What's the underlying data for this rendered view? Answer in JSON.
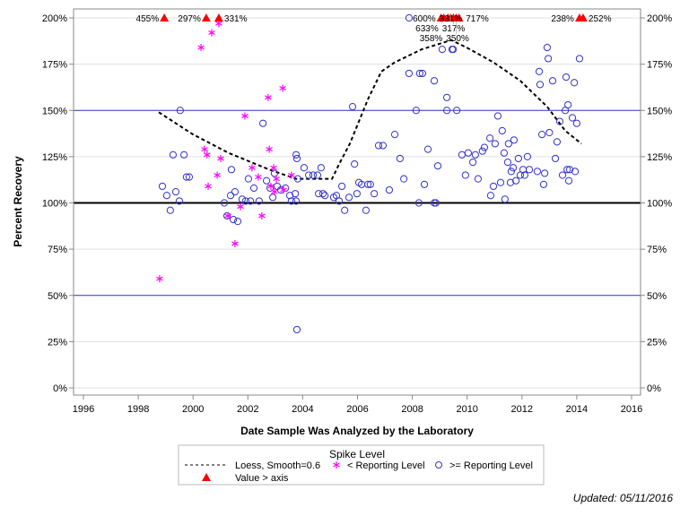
{
  "chart_data": {
    "type": "scatter",
    "xlabel": "Date Sample Was Analyzed by the Laboratory",
    "ylabel": "Percent Recovery",
    "xlim": [
      1995.7,
      2016.3
    ],
    "ylim": [
      -3,
      204
    ],
    "xticks": [
      1996,
      1998,
      2000,
      2002,
      2004,
      2006,
      2008,
      2010,
      2012,
      2014,
      2016
    ],
    "yticks": [
      0,
      25,
      50,
      75,
      100,
      125,
      150,
      175,
      200
    ],
    "ytick_labels": [
      "0%",
      "25%",
      "50%",
      "75%",
      "100%",
      "125%",
      "150%",
      "175%",
      "200%"
    ],
    "reference_lines": [
      {
        "y": 50,
        "color": "#3333cc"
      },
      {
        "y": 100,
        "color": "#000000"
      },
      {
        "y": 150,
        "color": "#3333cc"
      }
    ],
    "grid": "horizontal",
    "legend": {
      "title": "Spike Level",
      "placement": "bottom",
      "entries": [
        "Loess, Smooth=0.6",
        "< Reporting Level",
        ">= Reporting Level",
        "Value > axis"
      ]
    },
    "colors": {
      "below": "#ff00ff",
      "above": "#3333cc",
      "over_axis": "#ff0000",
      "loess": "#000000"
    },
    "loess": [
      [
        1998.75,
        149
      ],
      [
        2000,
        137
      ],
      [
        2001.3,
        127
      ],
      [
        2002.78,
        118
      ],
      [
        2003.76,
        113
      ],
      [
        2005.07,
        113
      ],
      [
        2005.33,
        121
      ],
      [
        2005.72,
        132
      ],
      [
        2006.38,
        156
      ],
      [
        2006.87,
        171
      ],
      [
        2007.36,
        176
      ],
      [
        2008.34,
        183
      ],
      [
        2009.42,
        188
      ],
      [
        2009.98,
        184
      ],
      [
        2010.96,
        176
      ],
      [
        2011.94,
        166
      ],
      [
        2012.92,
        152
      ],
      [
        2013.58,
        139
      ],
      [
        2014.17,
        132
      ]
    ],
    "below_reporting": [
      [
        1998.78,
        59
      ],
      [
        2000.29,
        184
      ],
      [
        2000.42,
        129
      ],
      [
        2000.51,
        126
      ],
      [
        2000.55,
        109
      ],
      [
        2000.68,
        192
      ],
      [
        2000.88,
        115
      ],
      [
        2000.94,
        197
      ],
      [
        2001.01,
        124
      ],
      [
        2001.27,
        93
      ],
      [
        2001.53,
        78
      ],
      [
        2001.73,
        98
      ],
      [
        2001.89,
        147
      ],
      [
        2002.15,
        119
      ],
      [
        2002.38,
        114
      ],
      [
        2002.51,
        93
      ],
      [
        2002.74,
        157
      ],
      [
        2002.78,
        129
      ],
      [
        2002.84,
        109
      ],
      [
        2002.94,
        119
      ],
      [
        2002.97,
        106
      ],
      [
        2003.04,
        113
      ],
      [
        2003.27,
        162
      ],
      [
        2003.3,
        107
      ],
      [
        2003.59,
        115
      ]
    ],
    "at_or_above_reporting": [
      [
        1998.88,
        109
      ],
      [
        1999.04,
        104
      ],
      [
        1999.17,
        96
      ],
      [
        1999.27,
        126
      ],
      [
        1999.37,
        106
      ],
      [
        1999.5,
        101
      ],
      [
        1999.53,
        150
      ],
      [
        1999.67,
        126
      ],
      [
        1999.76,
        114
      ],
      [
        1999.86,
        114
      ],
      [
        2001.14,
        100
      ],
      [
        2001.24,
        93
      ],
      [
        2001.37,
        104
      ],
      [
        2001.4,
        118
      ],
      [
        2001.47,
        91
      ],
      [
        2001.53,
        106
      ],
      [
        2001.63,
        90
      ],
      [
        2001.79,
        102
      ],
      [
        2001.92,
        101
      ],
      [
        2002.02,
        113
      ],
      [
        2002.09,
        101
      ],
      [
        2002.22,
        108
      ],
      [
        2002.41,
        101
      ],
      [
        2002.55,
        143
      ],
      [
        2002.68,
        112
      ],
      [
        2002.81,
        108
      ],
      [
        2002.91,
        103
      ],
      [
        2002.97,
        116
      ],
      [
        2003.07,
        109
      ],
      [
        2003.2,
        107
      ],
      [
        2003.37,
        108
      ],
      [
        2003.53,
        104
      ],
      [
        2003.59,
        101
      ],
      [
        2003.76,
        126
      ],
      [
        2003.79,
        124
      ],
      [
        2003.79,
        31.5
      ],
      [
        2003.76,
        101
      ],
      [
        2003.73,
        105
      ],
      [
        2003.82,
        113
      ],
      [
        2004.05,
        119
      ],
      [
        2004.22,
        115
      ],
      [
        2004.38,
        115
      ],
      [
        2004.54,
        115
      ],
      [
        2004.58,
        105
      ],
      [
        2004.67,
        119
      ],
      [
        2004.74,
        105
      ],
      [
        2004.81,
        104
      ],
      [
        2005.13,
        103
      ],
      [
        2005.23,
        104
      ],
      [
        2005.33,
        101
      ],
      [
        2005.43,
        109
      ],
      [
        2005.53,
        96
      ],
      [
        2005.69,
        103
      ],
      [
        2005.82,
        152
      ],
      [
        2005.89,
        121
      ],
      [
        2005.98,
        105
      ],
      [
        2006.05,
        111
      ],
      [
        2006.15,
        110
      ],
      [
        2006.31,
        96
      ],
      [
        2006.38,
        110
      ],
      [
        2006.47,
        110
      ],
      [
        2006.61,
        105
      ],
      [
        2006.77,
        131
      ],
      [
        2006.93,
        131
      ],
      [
        2007.16,
        107
      ],
      [
        2007.36,
        137
      ],
      [
        2007.55,
        124
      ],
      [
        2007.69,
        113
      ],
      [
        2007.88,
        170
      ],
      [
        2007.88,
        200
      ],
      [
        2008.14,
        150
      ],
      [
        2008.24,
        100
      ],
      [
        2008.27,
        170
      ],
      [
        2008.37,
        170
      ],
      [
        2008.44,
        110
      ],
      [
        2008.57,
        129
      ],
      [
        2008.8,
        166
      ],
      [
        2008.8,
        100
      ],
      [
        2008.86,
        100
      ],
      [
        2008.93,
        120
      ],
      [
        2009.09,
        183
      ],
      [
        2009.26,
        157
      ],
      [
        2009.26,
        150
      ],
      [
        2009.45,
        183
      ],
      [
        2009.49,
        183
      ],
      [
        2009.62,
        150
      ],
      [
        2009.81,
        126
      ],
      [
        2009.94,
        115
      ],
      [
        2010.04,
        127
      ],
      [
        2010.21,
        122
      ],
      [
        2010.3,
        126
      ],
      [
        2010.4,
        113
      ],
      [
        2010.56,
        128
      ],
      [
        2010.63,
        130
      ],
      [
        2010.83,
        135
      ],
      [
        2010.86,
        104
      ],
      [
        2010.96,
        109
      ],
      [
        2011.02,
        132
      ],
      [
        2011.12,
        147
      ],
      [
        2011.22,
        111
      ],
      [
        2011.28,
        139
      ],
      [
        2011.35,
        127
      ],
      [
        2011.38,
        102
      ],
      [
        2011.48,
        122
      ],
      [
        2011.51,
        132
      ],
      [
        2011.58,
        111
      ],
      [
        2011.61,
        117
      ],
      [
        2011.68,
        119
      ],
      [
        2011.71,
        134
      ],
      [
        2011.78,
        112
      ],
      [
        2011.87,
        124
      ],
      [
        2011.94,
        115
      ],
      [
        2012.04,
        118
      ],
      [
        2012.1,
        115
      ],
      [
        2012.2,
        125
      ],
      [
        2012.27,
        118
      ],
      [
        2012.56,
        117
      ],
      [
        2012.63,
        171
      ],
      [
        2012.66,
        164
      ],
      [
        2012.73,
        137
      ],
      [
        2012.79,
        110
      ],
      [
        2012.83,
        116
      ],
      [
        2012.92,
        184
      ],
      [
        2012.96,
        178
      ],
      [
        2013.0,
        138
      ],
      [
        2013.12,
        166
      ],
      [
        2013.22,
        124
      ],
      [
        2013.28,
        133
      ],
      [
        2013.38,
        144
      ],
      [
        2013.48,
        115
      ],
      [
        2013.58,
        150
      ],
      [
        2013.61,
        168
      ],
      [
        2013.65,
        118
      ],
      [
        2013.68,
        153
      ],
      [
        2013.71,
        112
      ],
      [
        2013.74,
        118
      ],
      [
        2013.84,
        146
      ],
      [
        2013.91,
        165
      ],
      [
        2013.94,
        117
      ],
      [
        2014.0,
        143
      ],
      [
        2014.1,
        178
      ]
    ],
    "over_axis": [
      {
        "x": 1998.95,
        "label": "455%",
        "side": "left",
        "row": 1
      },
      {
        "x": 2000.48,
        "label": "297%",
        "side": "left",
        "row": 1
      },
      {
        "x": 2000.94,
        "label": "331%",
        "side": "right",
        "row": 0
      },
      {
        "x": 2009.05,
        "label": "600%",
        "side": "left",
        "row": 0
      },
      {
        "x": 2009.15,
        "label": "633%",
        "side": "left",
        "row": 1
      },
      {
        "x": 2009.3,
        "label": "358%",
        "side": "left",
        "row": 0
      },
      {
        "x": 2009.4,
        "label": "331%",
        "side": "left",
        "row": 1
      },
      {
        "x": 2009.5,
        "label": "317%",
        "side": "left",
        "row": 1
      },
      {
        "x": 2009.6,
        "label": "350%",
        "side": "left",
        "row": 0
      },
      {
        "x": 2009.7,
        "label": "717%",
        "side": "right",
        "row": 1
      },
      {
        "x": 2014.1,
        "label": "238%",
        "side": "left",
        "row": 0
      },
      {
        "x": 2014.23,
        "label": "252%",
        "side": "right",
        "row": 0
      }
    ]
  },
  "footer": {
    "updated": "Updated: 05/11/2016"
  }
}
